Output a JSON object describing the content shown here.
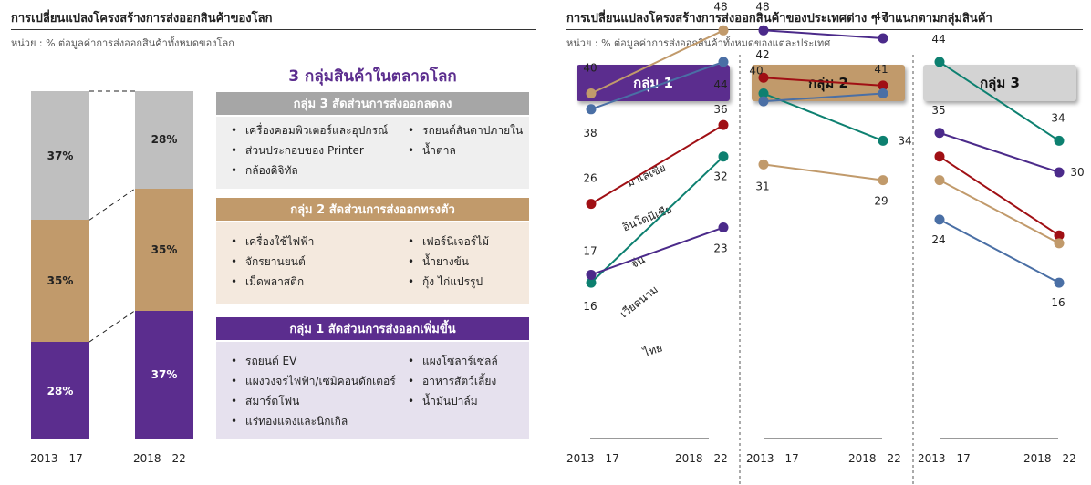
{
  "left": {
    "title": "การเปลี่ยนแปลงโครงสร้างการส่งออกสินค้าของโลก",
    "unit": "หน่วย : % ต่อมูลค่าการส่งออกสินค้าทั้งหมดของโลก",
    "heading": "3 กลุ่มสินค้าในตลาดโลก",
    "groups": [
      {
        "header": "กลุ่ม 3 สัดส่วนการส่งออกลดลง",
        "header_color": "#a6a6a6",
        "body_color": "#efefef",
        "col1": [
          "เครื่องคอมพิวเตอร์และอุปกรณ์",
          "ส่วนประกอบของ Printer",
          "กล้องดิจิทัล"
        ],
        "col2": [
          "รถยนต์สันดาปภายใน",
          "น้ำตาล"
        ]
      },
      {
        "header": "กลุ่ม 2 สัดส่วนการส่งออกทรงตัว",
        "header_color": "#c19a6b",
        "body_color": "#f4e9de",
        "col1": [
          "เครื่องใช้ไฟฟ้า",
          "จักรยานยนต์",
          "เม็ดพลาสติก"
        ],
        "col2": [
          "เฟอร์นิเจอร์ไม้",
          "น้ำยางข้น",
          "กุ้ง ไก่แปรรูป"
        ]
      },
      {
        "header": "กลุ่ม 1 สัดส่วนการส่งออกเพิ่มขึ้น",
        "header_color": "#5b2d8e",
        "body_color": "#e6e1ee",
        "col1": [
          "รถยนต์ EV",
          "แผงวงจรไฟฟ้า/เซมิคอนดักเตอร์",
          "สมาร์ตโฟน",
          "แร่ทองแดงและนิกเกิล"
        ],
        "col2": [
          "แผงโซลาร์เซลล์",
          "อาหารสัตว์เลี้ยง",
          "น้ำมันปาล์ม"
        ]
      }
    ]
  },
  "right": {
    "title": "การเปลี่ยนแปลงโครงสร้างการส่งออกสินค้าของประเทศต่าง ๆ จำแนกตามกลุ่มสินค้า",
    "unit": "หน่วย : % ต่อมูลค่าการส่งออกสินค้าทั้งหมดของแต่ละประเทศ"
  },
  "colors": {
    "g1": "#5b2d8e",
    "g2": "#c19a6b",
    "g3": "#bfbfbf",
    "malaysia": "#c19a6b",
    "indonesia": "#4a6fa5",
    "china": "#a00f14",
    "vietnam": "#0d8070",
    "thailand": "#4b2a8a"
  },
  "chart_data": [
    {
      "type": "bar",
      "categories": [
        "2013 - 17",
        "2018 - 22"
      ],
      "series": [
        {
          "name": "กลุ่ม 1",
          "values": [
            28,
            37
          ],
          "labels": [
            "28%",
            "37%"
          ]
        },
        {
          "name": "กลุ่ม 2",
          "values": [
            35,
            35
          ],
          "labels": [
            "35%",
            "35%"
          ]
        },
        {
          "name": "กลุ่ม 3",
          "values": [
            37,
            28
          ],
          "labels": [
            "37%",
            "28%"
          ]
        }
      ],
      "ylim": [
        0,
        100
      ]
    },
    {
      "type": "line",
      "panel": "กลุ่ม 1",
      "categories": [
        "2013 - 17",
        "2018 - 22"
      ],
      "series": [
        {
          "name": "มาเลเซีย",
          "key": "malaysia",
          "values": [
            40,
            48
          ]
        },
        {
          "name": "อินโดนีเซีย",
          "key": "indonesia",
          "values": [
            38,
            44
          ]
        },
        {
          "name": "จีน",
          "key": "china",
          "values": [
            26,
            36
          ]
        },
        {
          "name": "เวียดนาม",
          "key": "vietnam",
          "values": [
            16,
            32
          ]
        },
        {
          "name": "ไทย",
          "key": "thailand",
          "values": [
            17,
            23
          ]
        }
      ]
    },
    {
      "type": "line",
      "panel": "กลุ่ม 2",
      "categories": [
        "2013 - 17",
        "2018 - 22"
      ],
      "series": [
        {
          "key": "thailand",
          "values": [
            48,
            47
          ]
        },
        {
          "key": "china",
          "values": [
            42,
            41
          ]
        },
        {
          "key": "vietnam",
          "values": [
            40,
            34
          ]
        },
        {
          "key": "indonesia",
          "values": [
            39,
            40
          ]
        },
        {
          "key": "malaysia",
          "values": [
            31,
            29
          ]
        }
      ]
    },
    {
      "type": "line",
      "panel": "กลุ่ม 3",
      "categories": [
        "2013 - 17",
        "2018 - 22"
      ],
      "series": [
        {
          "key": "vietnam",
          "values": [
            44,
            34
          ]
        },
        {
          "key": "thailand",
          "values": [
            35,
            30
          ]
        },
        {
          "key": "china",
          "values": [
            32,
            22
          ]
        },
        {
          "key": "malaysia",
          "values": [
            29,
            21
          ]
        },
        {
          "key": "indonesia",
          "values": [
            24,
            16
          ]
        }
      ]
    }
  ]
}
